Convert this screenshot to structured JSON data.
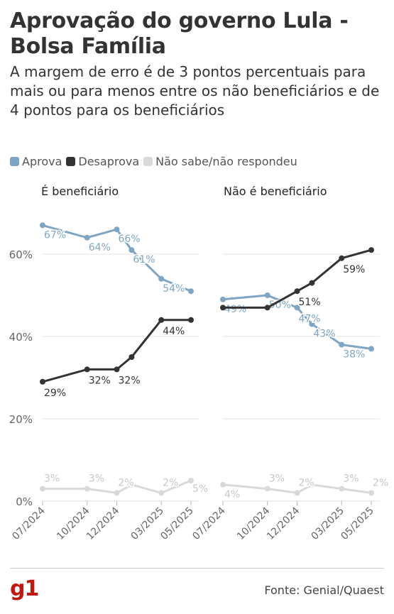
{
  "header": {
    "title": "Aprovação do governo Lula - Bolsa Família",
    "subtitle": "A margem de erro é de 3 pontos percentuais para mais ou para menos entre os não beneficiários e de 4 pontos para os beneficiários"
  },
  "colors": {
    "aprova": "#7ea6c4",
    "desaprova": "#333333",
    "nao_sabe": "#d9d9d9"
  },
  "legend": {
    "aprova": "Aprova",
    "desaprova": "Desaprova",
    "nao_sabe": "Não sabe/não respondeu"
  },
  "footer": {
    "logo": "g1",
    "source": "Fonte: Genial/Quaest"
  },
  "chart_data": [
    {
      "type": "line",
      "title": "É beneficiário",
      "x": [
        "07/2024",
        "10/2024",
        "12/2024",
        "01/2025",
        "03/2025",
        "05/2025"
      ],
      "x_tick_labels": [
        "07/2024",
        "10/2024",
        "12/2024",
        "03/2025",
        "05/2025"
      ],
      "y_tick_labels": [
        "0%",
        "20%",
        "40%",
        "60%"
      ],
      "ylim": [
        0,
        70
      ],
      "grid": true,
      "series": [
        {
          "name": "Aprova",
          "values": [
            67,
            64,
            66,
            61,
            54,
            51
          ],
          "labels": [
            "67%",
            "64%",
            "66%",
            "61%",
            "54%",
            ""
          ]
        },
        {
          "name": "Desaprova",
          "values": [
            29,
            32,
            32,
            35,
            44,
            44
          ],
          "labels": [
            "29%",
            "32%",
            "32%",
            "",
            "44%",
            ""
          ]
        },
        {
          "name": "Não sabe/não respondeu",
          "values": [
            3,
            3,
            2,
            4,
            2,
            5
          ],
          "labels": [
            "3%",
            "3%",
            "2%",
            "",
            "2%",
            "5%"
          ]
        }
      ]
    },
    {
      "type": "line",
      "title": "Não é beneficiário",
      "x": [
        "07/2024",
        "10/2024",
        "12/2024",
        "01/2025",
        "03/2025",
        "05/2025"
      ],
      "x_tick_labels": [
        "07/2024",
        "10/2024",
        "12/2024",
        "03/2025",
        "05/2025"
      ],
      "ylim": [
        0,
        70
      ],
      "grid": true,
      "series": [
        {
          "name": "Aprova",
          "values": [
            49,
            50,
            47,
            43,
            38,
            37
          ],
          "labels": [
            "49%",
            "50%",
            "47%",
            "43%",
            "38%",
            ""
          ]
        },
        {
          "name": "Desaprova",
          "values": [
            47,
            47,
            51,
            53,
            59,
            61
          ],
          "labels": [
            "",
            "",
            "51%",
            "",
            "59%",
            ""
          ]
        },
        {
          "name": "Não sabe/não respondeu",
          "values": [
            4,
            3,
            2,
            4,
            3,
            2
          ],
          "labels": [
            "4%",
            "3%",
            "2%",
            "",
            "3%",
            "2%"
          ]
        }
      ]
    }
  ]
}
